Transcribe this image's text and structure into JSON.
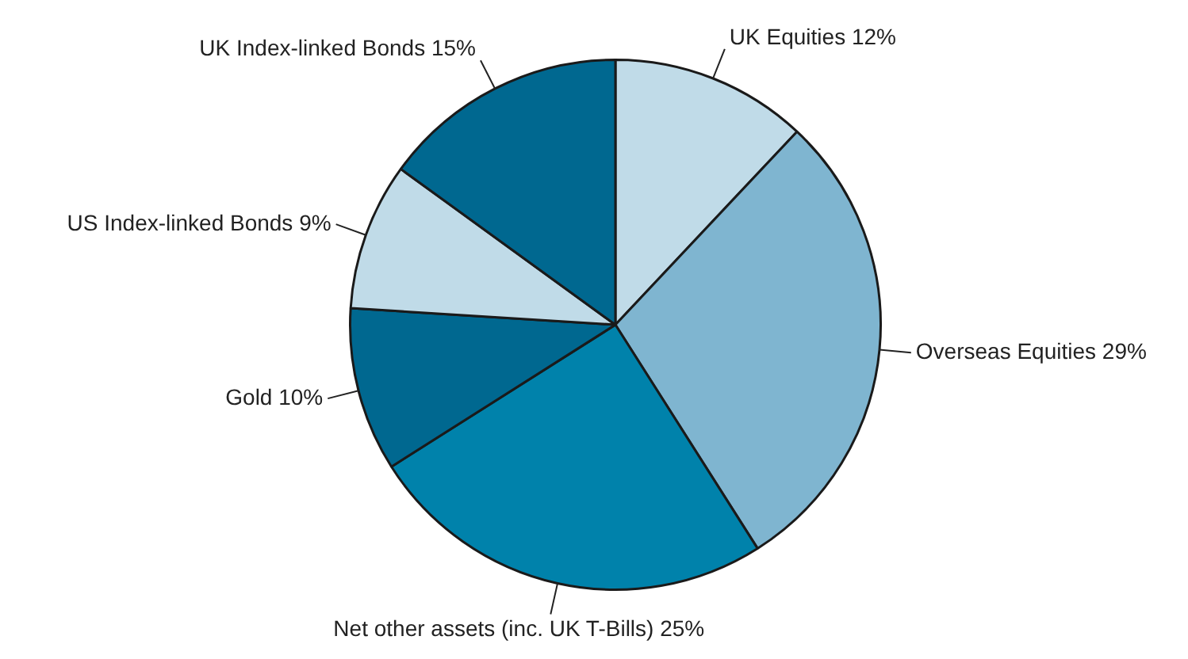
{
  "chart_data": {
    "type": "pie",
    "categories": [
      "UK Equities",
      "Overseas Equities",
      "Net other assets (inc. UK T-Bills)",
      "Gold",
      "US Index-linked Bonds",
      "UK Index-linked Bonds"
    ],
    "values": [
      12,
      29,
      25,
      10,
      9,
      15
    ],
    "value_labels": [
      "12%",
      "29%",
      "25%",
      "10%",
      "9%",
      "15%"
    ],
    "colors": [
      "#c0dbe8",
      "#7fb5d0",
      "#0082ab",
      "#006890",
      "#c0dbe8",
      "#006890"
    ],
    "legend": false
  }
}
